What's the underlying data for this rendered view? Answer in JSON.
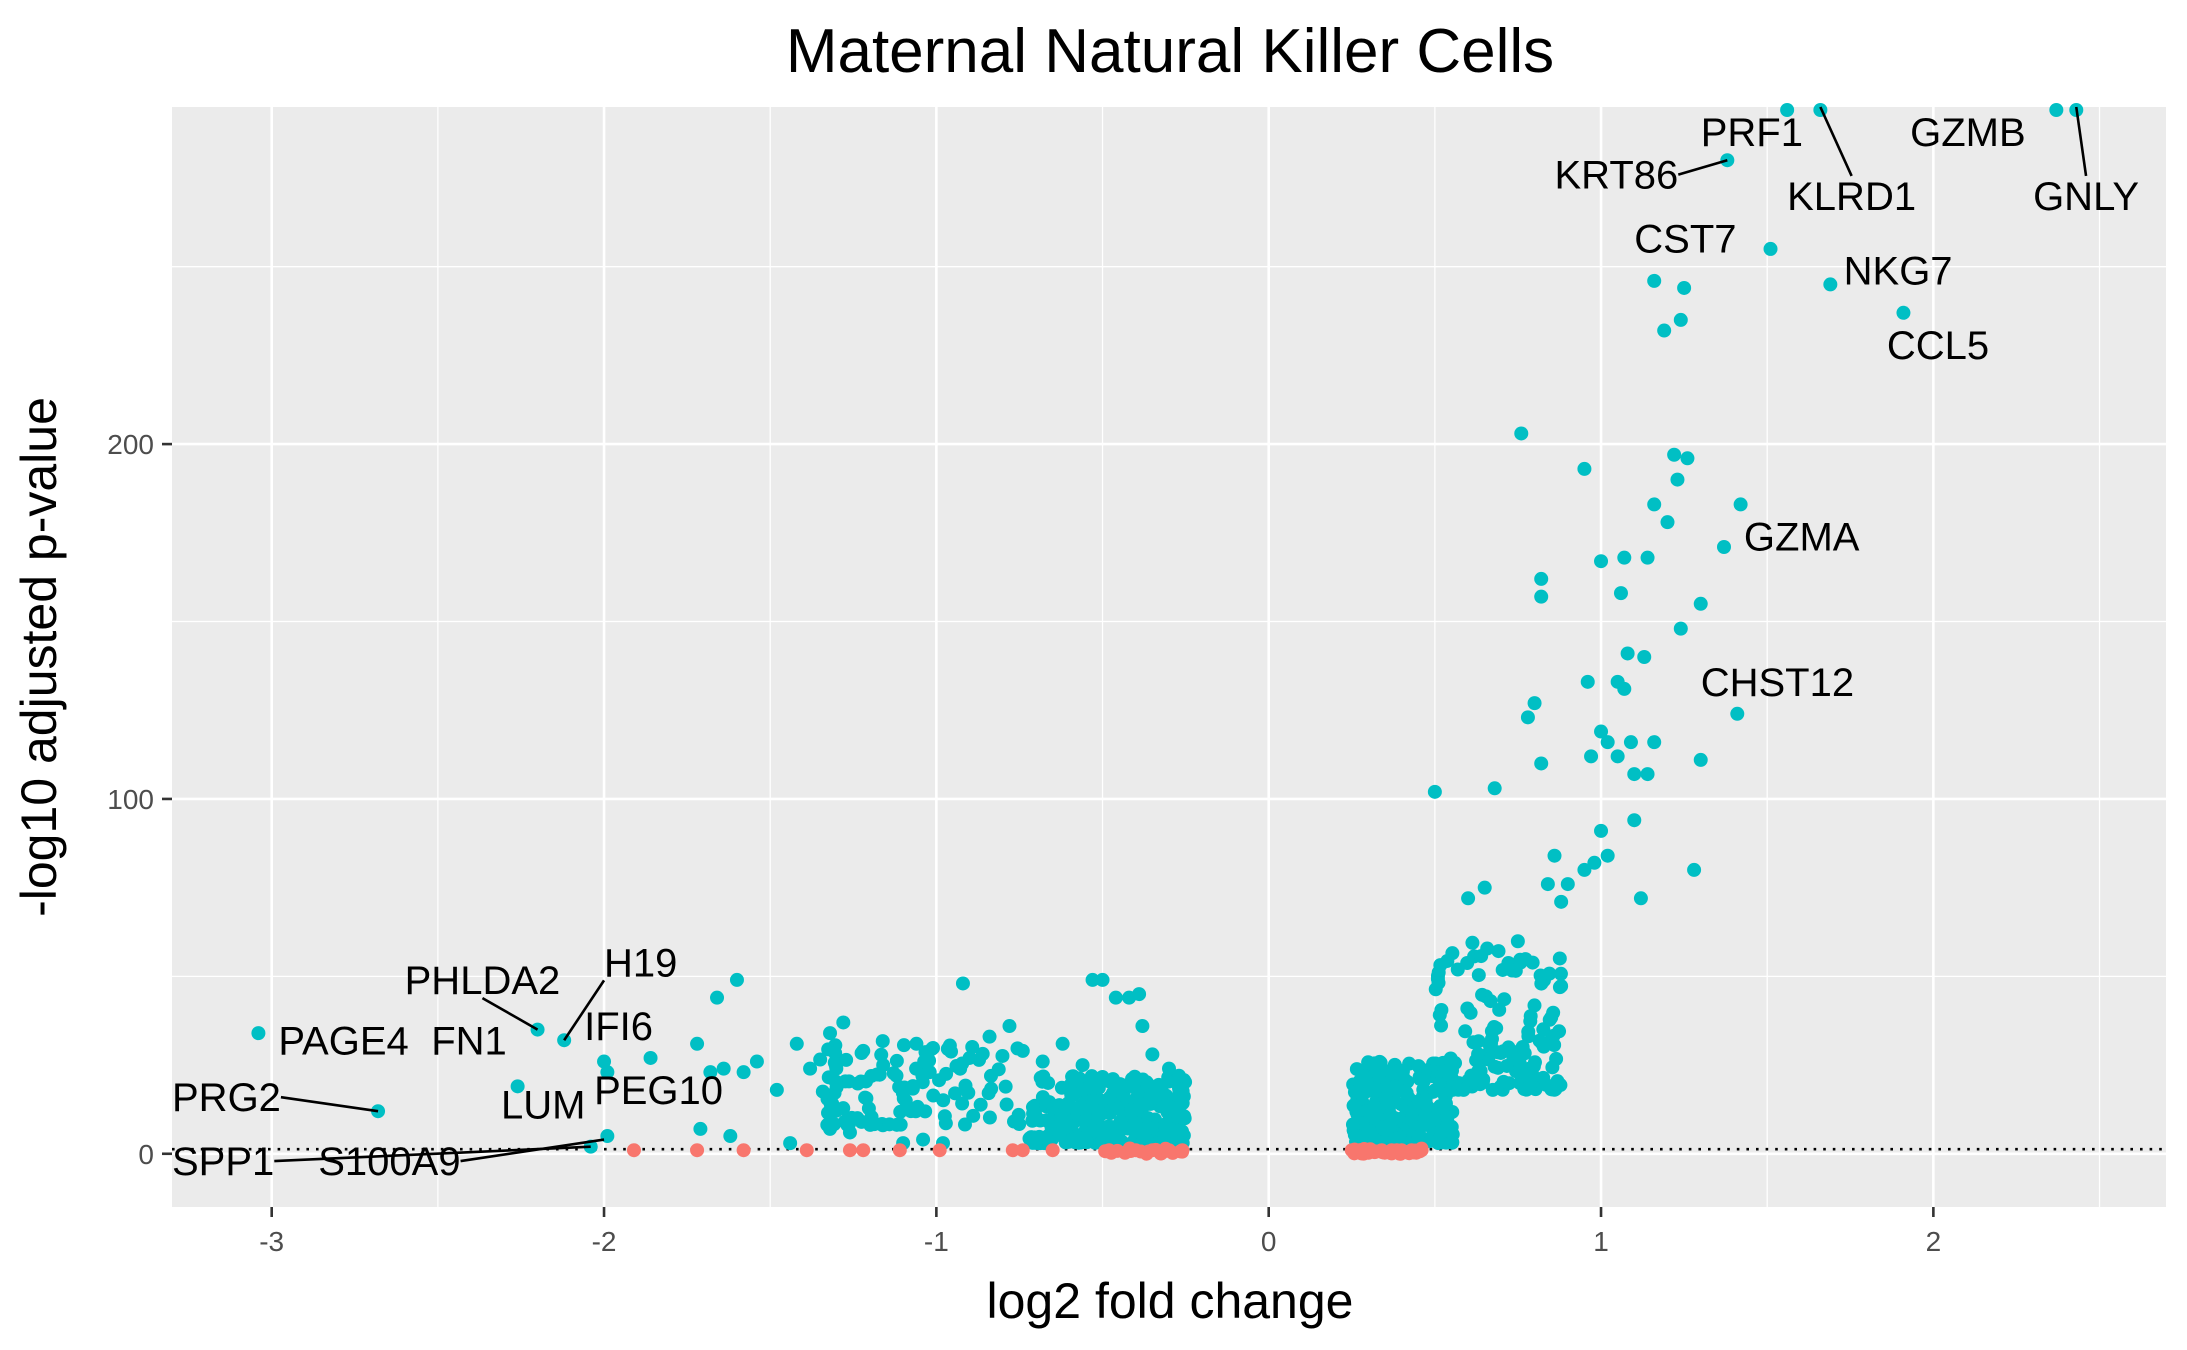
{
  "chart_data": {
    "type": "scatter",
    "title": "Maternal Natural Killer Cells",
    "xlabel": "log2 fold change",
    "ylabel": "-log10 adjusted p-value",
    "xlim": [
      -3.3,
      2.7
    ],
    "ylim": [
      -15,
      295
    ],
    "x_ticks": [
      -3,
      -2,
      -1,
      0,
      1,
      2
    ],
    "x_tick_labels": [
      "-3",
      "-2",
      "-1",
      "0",
      "1",
      "2"
    ],
    "y_ticks": [
      0,
      100,
      200
    ],
    "y_tick_labels": [
      "0",
      "100",
      "200"
    ],
    "grid": true,
    "legend": "none",
    "threshold_line": {
      "y": 1.3,
      "style": "dotted"
    },
    "colors": {
      "significant": "#00BFC4",
      "not_significant": "#F8766D",
      "panel_background": "#EBEBEB",
      "grid": "#FFFFFF"
    },
    "series": [
      {
        "key": "significant",
        "color": "#00BFC4",
        "points": [
          [
            -3.04,
            34
          ],
          [
            -2.68,
            12
          ],
          [
            -2.26,
            19
          ],
          [
            -2.2,
            35
          ],
          [
            -2.12,
            32
          ],
          [
            -2.0,
            26
          ],
          [
            -1.99,
            23
          ],
          [
            -1.99,
            5
          ],
          [
            -2.04,
            2
          ],
          [
            -1.86,
            27
          ],
          [
            -1.66,
            44
          ],
          [
            -1.6,
            49
          ],
          [
            -1.72,
            31
          ],
          [
            -1.68,
            23
          ],
          [
            -1.64,
            24
          ],
          [
            -1.58,
            23
          ],
          [
            -1.54,
            26
          ],
          [
            -1.48,
            18
          ],
          [
            -1.42,
            31
          ],
          [
            -1.38,
            24
          ],
          [
            -1.32,
            34
          ],
          [
            -1.28,
            37
          ],
          [
            -1.22,
            29
          ],
          [
            -1.16,
            25
          ],
          [
            -1.12,
            22
          ],
          [
            -1.06,
            31
          ],
          [
            -1.02,
            23
          ],
          [
            -1.32,
            7
          ],
          [
            -1.26,
            6
          ],
          [
            -1.44,
            3
          ],
          [
            -1.71,
            7
          ],
          [
            -1.62,
            5
          ],
          [
            -1.1,
            3
          ],
          [
            -1.04,
            4
          ],
          [
            -0.98,
            3
          ],
          [
            -0.92,
            48
          ],
          [
            -0.9,
            27
          ],
          [
            -0.84,
            33
          ],
          [
            -0.78,
            36
          ],
          [
            -0.74,
            29
          ],
          [
            -0.68,
            26
          ],
          [
            -0.62,
            31
          ],
          [
            -0.56,
            25
          ],
          [
            -0.53,
            49
          ],
          [
            -0.5,
            49
          ],
          [
            -0.46,
            44
          ],
          [
            -0.42,
            44
          ],
          [
            -0.39,
            45
          ],
          [
            -0.38,
            36
          ],
          [
            -0.35,
            28
          ],
          [
            -0.3,
            24
          ],
          [
            -0.27,
            22
          ]
        ]
      },
      {
        "key": "top_genes",
        "color": "#00BFC4",
        "points": [
          [
            1.38,
            280
          ],
          [
            1.51,
            255
          ],
          [
            1.69,
            245
          ],
          [
            1.91,
            237
          ],
          [
            1.25,
            244
          ],
          [
            1.37,
            171
          ],
          [
            1.41,
            124
          ],
          [
            1.16,
            246
          ],
          [
            1.24,
            235
          ],
          [
            1.19,
            232
          ],
          [
            0.76,
            203
          ],
          [
            0.95,
            193
          ],
          [
            1.22,
            197
          ],
          [
            1.26,
            196
          ],
          [
            1.23,
            190
          ],
          [
            1.16,
            183
          ],
          [
            1.42,
            183
          ],
          [
            1.2,
            178
          ],
          [
            1.0,
            167
          ],
          [
            1.07,
            168
          ],
          [
            1.14,
            168
          ],
          [
            0.82,
            162
          ],
          [
            0.82,
            157
          ],
          [
            1.06,
            158
          ],
          [
            1.3,
            155
          ],
          [
            1.24,
            148
          ],
          [
            1.08,
            141
          ],
          [
            1.13,
            140
          ],
          [
            0.96,
            133
          ],
          [
            1.05,
            133
          ],
          [
            1.07,
            131
          ],
          [
            0.8,
            127
          ],
          [
            0.78,
            123
          ],
          [
            1.0,
            119
          ],
          [
            1.02,
            116
          ],
          [
            1.09,
            116
          ],
          [
            1.16,
            116
          ],
          [
            1.3,
            111
          ],
          [
            0.82,
            110
          ],
          [
            0.97,
            112
          ],
          [
            1.05,
            112
          ],
          [
            1.1,
            107
          ],
          [
            1.14,
            107
          ],
          [
            0.5,
            102
          ],
          [
            0.68,
            103
          ],
          [
            1.1,
            94
          ],
          [
            1.0,
            91
          ],
          [
            0.86,
            84
          ],
          [
            1.02,
            84
          ],
          [
            0.95,
            80
          ],
          [
            0.98,
            82
          ],
          [
            1.28,
            80
          ],
          [
            0.84,
            76
          ],
          [
            0.9,
            76
          ],
          [
            0.88,
            71
          ],
          [
            1.12,
            72
          ],
          [
            0.65,
            75
          ],
          [
            0.6,
            72
          ]
        ]
      },
      {
        "key": "not_significant",
        "color": "#F8766D",
        "points": [
          [
            -1.91,
            1
          ],
          [
            -1.72,
            1
          ],
          [
            -1.58,
            1
          ],
          [
            -1.39,
            1
          ],
          [
            -1.26,
            1
          ],
          [
            -1.22,
            1
          ],
          [
            -1.11,
            1
          ],
          [
            -0.99,
            1
          ],
          [
            -0.77,
            1
          ],
          [
            -0.74,
            1
          ],
          [
            -0.65,
            1
          ],
          [
            -0.48,
            1
          ],
          [
            -0.4,
            1
          ],
          [
            -0.35,
            1
          ],
          [
            -0.3,
            1
          ],
          [
            -0.26,
            1
          ],
          [
            0.25,
            1
          ],
          [
            0.28,
            1
          ],
          [
            0.31,
            1
          ],
          [
            0.34,
            1
          ],
          [
            0.37,
            1
          ],
          [
            0.4,
            1
          ],
          [
            0.43,
            1
          ],
          [
            0.46,
            1
          ]
        ]
      }
    ],
    "dense_clusters": [
      {
        "color": "#00BFC4",
        "x_range": [
          -0.72,
          -0.25
        ],
        "y_range": [
          3,
          22
        ],
        "n": 300,
        "seed": 11
      },
      {
        "color": "#00BFC4",
        "x_range": [
          -1.35,
          -0.75
        ],
        "y_range": [
          8,
          32
        ],
        "n": 110,
        "seed": 23
      },
      {
        "color": "#00BFC4",
        "x_range": [
          0.25,
          0.56
        ],
        "y_range": [
          3,
          26
        ],
        "n": 260,
        "seed": 37
      },
      {
        "color": "#00BFC4",
        "x_range": [
          0.5,
          0.88
        ],
        "y_range": [
          18,
          60
        ],
        "n": 140,
        "seed": 51
      },
      {
        "color": "#F8766D",
        "x_range": [
          0.25,
          0.46
        ],
        "y_range": [
          0,
          1.5
        ],
        "n": 40,
        "seed": 73
      },
      {
        "color": "#F8766D",
        "x_range": [
          -0.5,
          -0.25
        ],
        "y_range": [
          0,
          1.5
        ],
        "n": 20,
        "seed": 89
      }
    ],
    "annotations": [
      {
        "label": "PRF1",
        "x": 1.38,
        "y": 280,
        "lx": 1.3,
        "ly": 284,
        "line": false
      },
      {
        "label": "KRT86",
        "x": 1.38,
        "y": 280,
        "lx": 0.86,
        "ly": 272,
        "line": true
      },
      {
        "label": "GZMB",
        "x": 2.37,
        "y": 294,
        "lx": 1.93,
        "ly": 284,
        "line": false
      },
      {
        "label": "KLRD1",
        "x": 1.66,
        "y": 295,
        "lx": 1.56,
        "ly": 266,
        "line": true
      },
      {
        "label": "GNLY",
        "x": 2.43,
        "y": 295,
        "lx": 2.3,
        "ly": 266,
        "line": true
      },
      {
        "label": "CST7",
        "x": 1.38,
        "y": 260,
        "lx": 1.1,
        "ly": 254,
        "line": false
      },
      {
        "label": "NKG7",
        "x": 1.69,
        "y": 245,
        "lx": 1.73,
        "ly": 245,
        "line": false
      },
      {
        "label": "CCL5",
        "x": 1.91,
        "y": 237,
        "lx": 1.86,
        "ly": 224,
        "line": false
      },
      {
        "label": "GZMA",
        "x": 1.37,
        "y": 171,
        "lx": 1.43,
        "ly": 170,
        "line": false
      },
      {
        "label": "CHST12",
        "x": 1.41,
        "y": 124,
        "lx": 1.3,
        "ly": 129,
        "line": false
      },
      {
        "label": "H19",
        "x": -2.12,
        "y": 32,
        "lx": -2.0,
        "ly": 50,
        "line": true
      },
      {
        "label": "PHLDA2",
        "x": -2.2,
        "y": 35,
        "lx": -2.6,
        "ly": 45,
        "line": true
      },
      {
        "label": "IFI6",
        "x": -2.12,
        "y": 32,
        "lx": -2.06,
        "ly": 32,
        "line": false
      },
      {
        "label": "PAGE4",
        "x": -3.04,
        "y": 34,
        "lx": -2.98,
        "ly": 28,
        "line": false
      },
      {
        "label": "FN1",
        "x": -2.26,
        "y": 19,
        "lx": -2.52,
        "ly": 28,
        "line": false
      },
      {
        "label": "PRG2",
        "x": -2.68,
        "y": 12,
        "lx": -3.3,
        "ly": 12,
        "line": true
      },
      {
        "label": "LUM",
        "x": -1.99,
        "y": 5,
        "lx": -2.31,
        "ly": 10,
        "line": false
      },
      {
        "label": "PEG10",
        "x": -1.99,
        "y": 5,
        "lx": -2.03,
        "ly": 14,
        "line": false
      },
      {
        "label": "SPP1",
        "x": -2.04,
        "y": 2,
        "lx": -3.3,
        "ly": -6,
        "line": true
      },
      {
        "label": "S100A9",
        "x": -2.0,
        "y": 4,
        "lx": -2.86,
        "ly": -6,
        "line": true
      }
    ]
  }
}
